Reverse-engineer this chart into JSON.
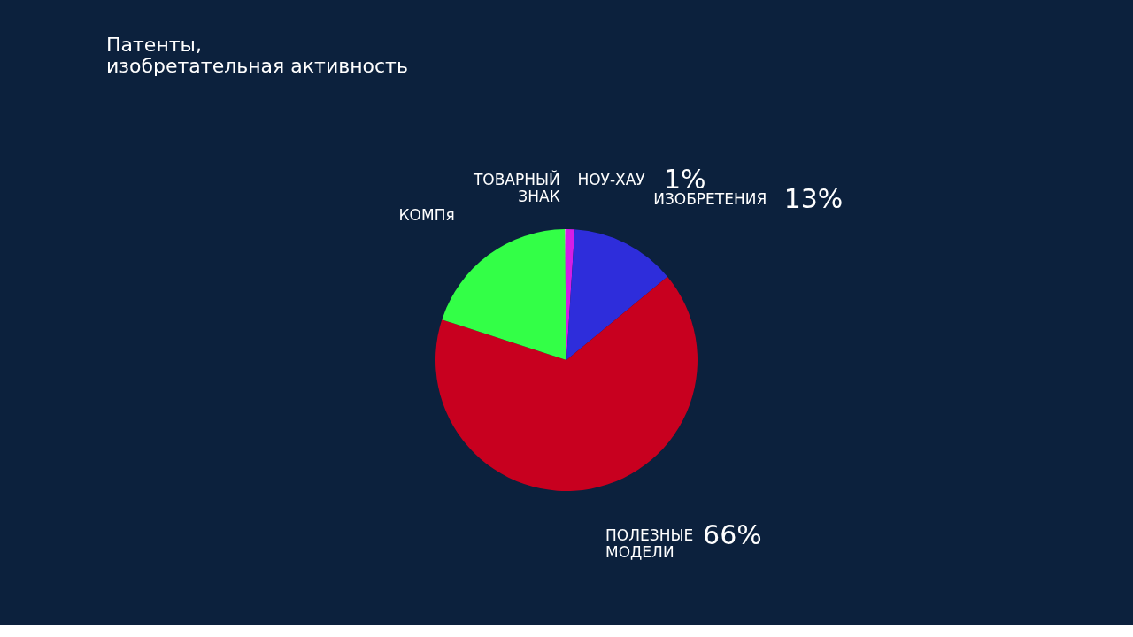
{
  "chart_data": {
    "type": "pie",
    "title": "Патенты, изобретательная активность",
    "categories": [
      "НОУ-ХАУ",
      "ИЗОБРЕТЕНИЯ",
      "ПОЛЕЗНЫЕ МОДЕЛИ",
      "КОМПя",
      "ТОВАРНЫЙ ЗНАК"
    ],
    "values": [
      1,
      13,
      66,
      19.8,
      0.2
    ],
    "colors": [
      "#d41ee6",
      "#2e2ddb",
      "#c8001f",
      "#33ff47",
      "#f0a0f0"
    ],
    "value_labels": [
      "1%",
      "13%",
      "66%",
      null,
      null
    ],
    "legend": false
  }
}
